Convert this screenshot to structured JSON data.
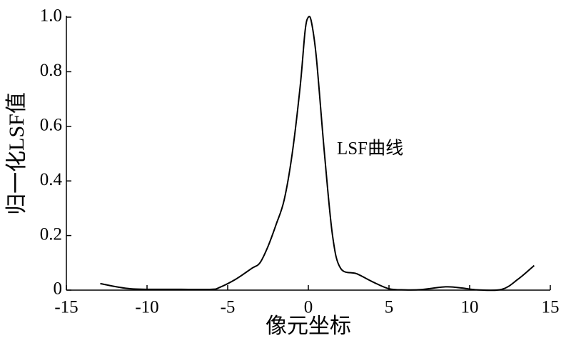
{
  "chart_data": {
    "type": "line",
    "annotation": "LSF曲线",
    "xlabel": "像元坐标",
    "ylabel": "归一化LSF值",
    "x": [
      -12.9,
      -11,
      -8,
      -6,
      -5.5,
      -4.5,
      -3.5,
      -3,
      -2.5,
      -2,
      -1.5,
      -1,
      -0.5,
      -0.2,
      0,
      0.2,
      0.5,
      1,
      1.5,
      2,
      3,
      4,
      5,
      6,
      7,
      8.5,
      9.5,
      10.5,
      12,
      13,
      14
    ],
    "series": [
      {
        "name": "LSF曲线",
        "color": "#000000",
        "values": [
          0.024,
          0.005,
          0.003,
          0.003,
          0.01,
          0.04,
          0.08,
          0.1,
          0.16,
          0.24,
          0.33,
          0.5,
          0.75,
          0.95,
          1.0,
          0.98,
          0.85,
          0.5,
          0.2,
          0.08,
          0.06,
          0.03,
          0.005,
          0.001,
          0.002,
          0.012,
          0.008,
          0.001,
          0.003,
          0.04,
          0.09
        ]
      }
    ],
    "xlim": [
      -15,
      15
    ],
    "ylim": [
      0,
      1
    ],
    "xticks": [
      -15,
      -10,
      -5,
      0,
      5,
      10,
      15
    ],
    "yticks": [
      0,
      0.2,
      0.4,
      0.6,
      0.8,
      {
        "value": 1,
        "label": "1.0"
      }
    ]
  }
}
